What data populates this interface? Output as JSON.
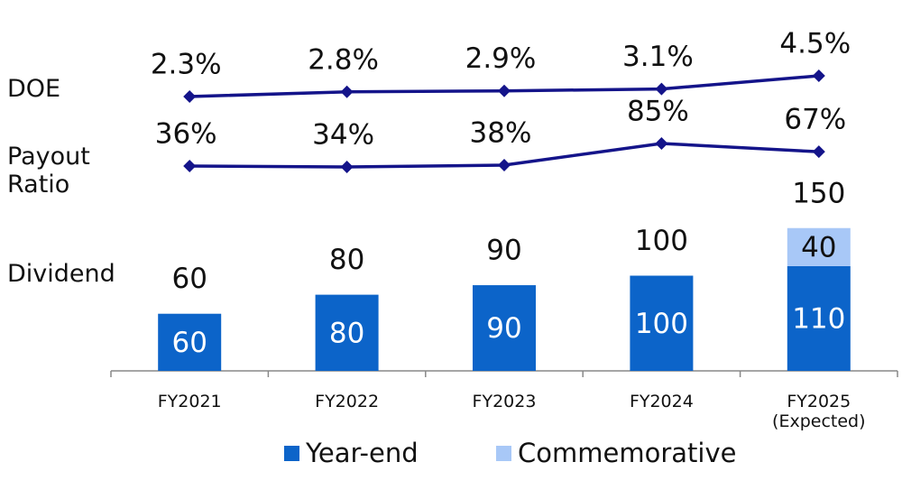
{
  "chart_data": {
    "type": "bar",
    "categories": [
      "FY2021",
      "FY2022",
      "FY2023",
      "FY2024",
      "FY2025 (Expected)"
    ],
    "bar_label": "Dividend",
    "series": [
      {
        "name": "Year-end",
        "color": "#0c64c9",
        "values": [
          60,
          80,
          90,
          100,
          110
        ]
      },
      {
        "name": "Commemorative",
        "color": "#a8c8f7",
        "values": [
          null,
          null,
          null,
          null,
          40
        ]
      }
    ],
    "totals": [
      60,
      80,
      90,
      100,
      150
    ],
    "lines": [
      {
        "name": "DOE",
        "color": "#14148a",
        "values": [
          2.3,
          2.8,
          2.9,
          3.1,
          4.5
        ],
        "value_labels": [
          "2.3%",
          "2.8%",
          "2.9%",
          "3.1%",
          "4.5%"
        ]
      },
      {
        "name": "Payout Ratio",
        "color": "#14148a",
        "values": [
          36,
          34,
          38,
          85,
          67
        ],
        "value_labels": [
          "36%",
          "34%",
          "38%",
          "85%",
          "67%"
        ]
      }
    ]
  }
}
